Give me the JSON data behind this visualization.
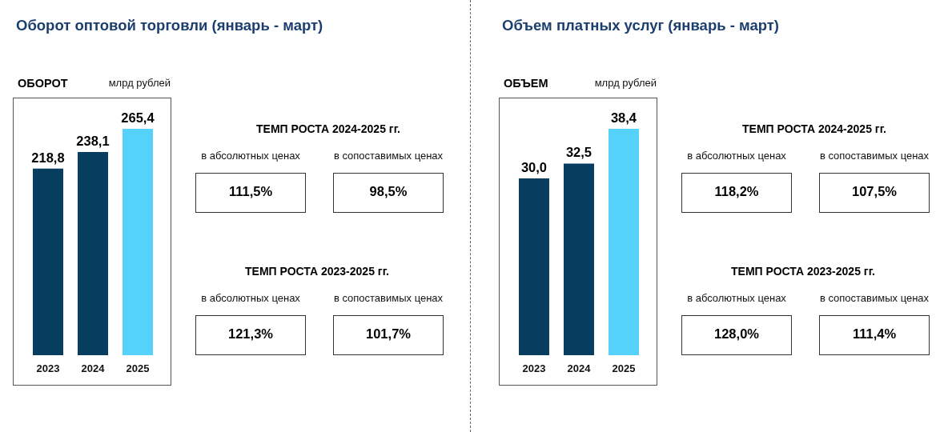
{
  "chart_data": [
    {
      "type": "bar",
      "title": "Оборот оптовой торговли (январь - март)",
      "subtitle": "ОБОРОТ",
      "ylabel": "млрд рублей",
      "categories": [
        "2023",
        "2024",
        "2025"
      ],
      "values": [
        218.8,
        238.1,
        265.4
      ],
      "colors": [
        "#073d5e",
        "#073d5e",
        "#55d2fb"
      ],
      "value_labels": [
        "218,8",
        "238,1",
        "265,4"
      ]
    },
    {
      "type": "other",
      "title": "ТЕМП РОСТА 2024-2025 гг.",
      "annotations": [
        "в абсолютных ценах",
        "в сопоставимых ценах",
        "111,5%",
        "98,5%"
      ]
    },
    {
      "type": "other",
      "title": "ТЕМП РОСТА 2023-2025 гг.",
      "annotations": [
        "в абсолютных ценах",
        "в сопоставимых ценах",
        "121,3%",
        "101,7%"
      ]
    },
    {
      "type": "bar",
      "title": "Объем платных услуг (январь - март)",
      "subtitle": "ОБЪЕМ",
      "ylabel": "млрд рублей",
      "categories": [
        "2023",
        "2024",
        "2025"
      ],
      "values": [
        30.0,
        32.5,
        38.4
      ],
      "colors": [
        "#073d5e",
        "#073d5e",
        "#55d2fb"
      ],
      "value_labels": [
        "30,0",
        "32,5",
        "38,4"
      ]
    },
    {
      "type": "other",
      "title": "ТЕМП РОСТА 2024-2025 гг.",
      "annotations": [
        "в абсолютных ценах",
        "в сопоставимых ценах",
        "118,2%",
        "107,5%"
      ]
    },
    {
      "type": "other",
      "title": "ТЕМП РОСТА 2023-2025 гг.",
      "annotations": [
        "в абсолютных ценах",
        "в сопоставимых ценах",
        "128,0%",
        "111,4%"
      ]
    }
  ]
}
